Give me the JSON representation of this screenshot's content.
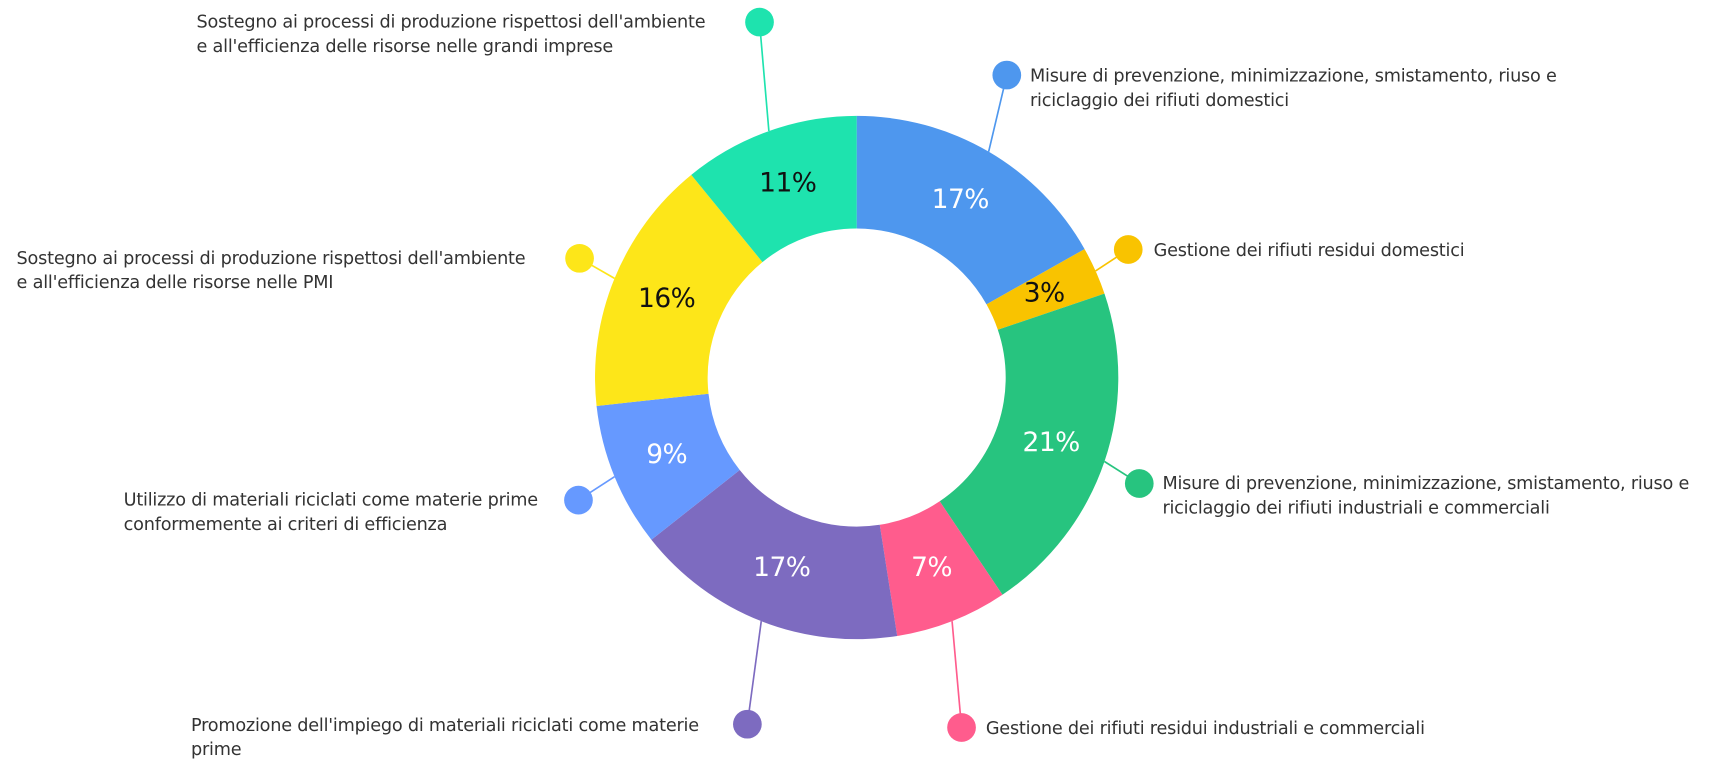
{
  "chart_data": {
    "type": "donut",
    "categories": [
      "Misure di prevenzione, minimizzazione, smistamento, riuso e\nriciclaggio dei rifiuti domestici",
      "Gestione dei rifiuti residui domestici",
      "Misure di prevenzione, minimizzazione, smistamento, riuso e\nriciclaggio dei rifiuti industriali e commerciali",
      "Gestione dei rifiuti residui industriali e commerciali",
      "Promozione dell'impiego di materiali riciclati come materie\nprime",
      "Utilizzo di materiali riciclati come materie prime\nconformemente ai criteri di efficienza",
      "Sostegno ai processi di produzione rispettosi dell'ambiente\ne all'efficienza delle risorse nelle PMI",
      "Sostegno ai processi di produzione rispettosi dell'ambiente\ne all'efficienza delle risorse nelle grandi imprese"
    ],
    "values": [
      17,
      3,
      21,
      7,
      17,
      9,
      16,
      11
    ],
    "value_labels": [
      "17%",
      "3%",
      "21%",
      "7%",
      "17%",
      "9%",
      "16%",
      "11%"
    ],
    "colors": [
      "#4e97ee",
      "#f9c300",
      "#27c47f",
      "#ff5c8d",
      "#7d6bc0",
      "#6699ff",
      "#fde619",
      "#1ee3ae"
    ],
    "label_colors": [
      "#ffffff",
      "#111111",
      "#ffffff",
      "#ffffff",
      "#ffffff",
      "#ffffff",
      "#111111",
      "#111111"
    ]
  }
}
